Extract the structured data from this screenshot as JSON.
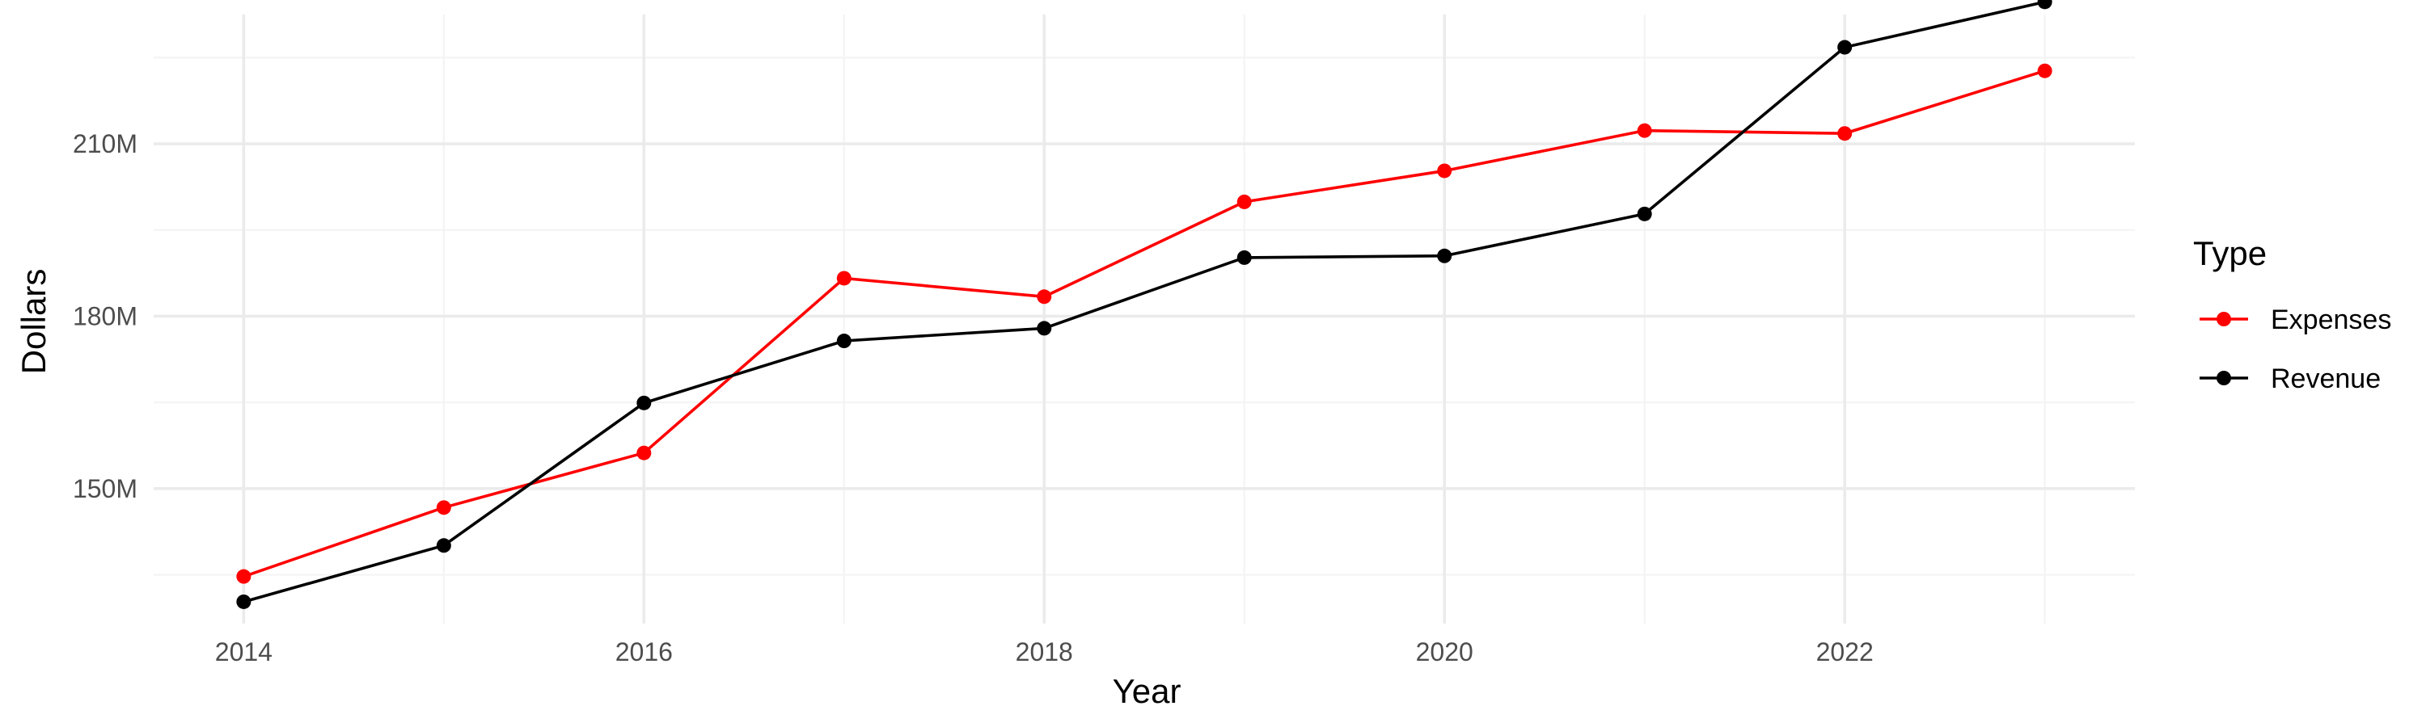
{
  "chart_data": {
    "type": "line",
    "title": "",
    "xlabel": "Year",
    "ylabel": "Dollars",
    "x": [
      2014,
      2015,
      2016,
      2017,
      2018,
      2019,
      2020,
      2021,
      2022,
      2023
    ],
    "x_ticks": [
      2014,
      2016,
      2018,
      2020,
      2022
    ],
    "x_tick_labels": [
      "2014",
      "2016",
      "2018",
      "2020",
      "2022"
    ],
    "xlim": [
      2013.55,
      2023.45
    ],
    "y_ticks": [
      150,
      180,
      210
    ],
    "y_tick_labels": [
      "150M",
      "180M",
      "210M"
    ],
    "y_minor_ticks": [
      135,
      165,
      195,
      225
    ],
    "ylim": [
      126.5,
      232.5
    ],
    "y_unit": "M",
    "grid": true,
    "series": [
      {
        "name": "Expenses",
        "color": "#ff0000",
        "values": [
          134.7,
          146.7,
          156.2,
          186.6,
          183.4,
          199.9,
          205.3,
          212.3,
          211.8,
          222.7
        ]
      },
      {
        "name": "Revenue",
        "color": "#000000",
        "values": [
          130.3,
          140.1,
          164.9,
          175.7,
          177.9,
          190.2,
          190.5,
          197.8,
          226.8,
          234.7
        ]
      }
    ],
    "legend": {
      "title": "Type",
      "placement": "right",
      "entries": [
        "Expenses",
        "Revenue"
      ]
    }
  }
}
